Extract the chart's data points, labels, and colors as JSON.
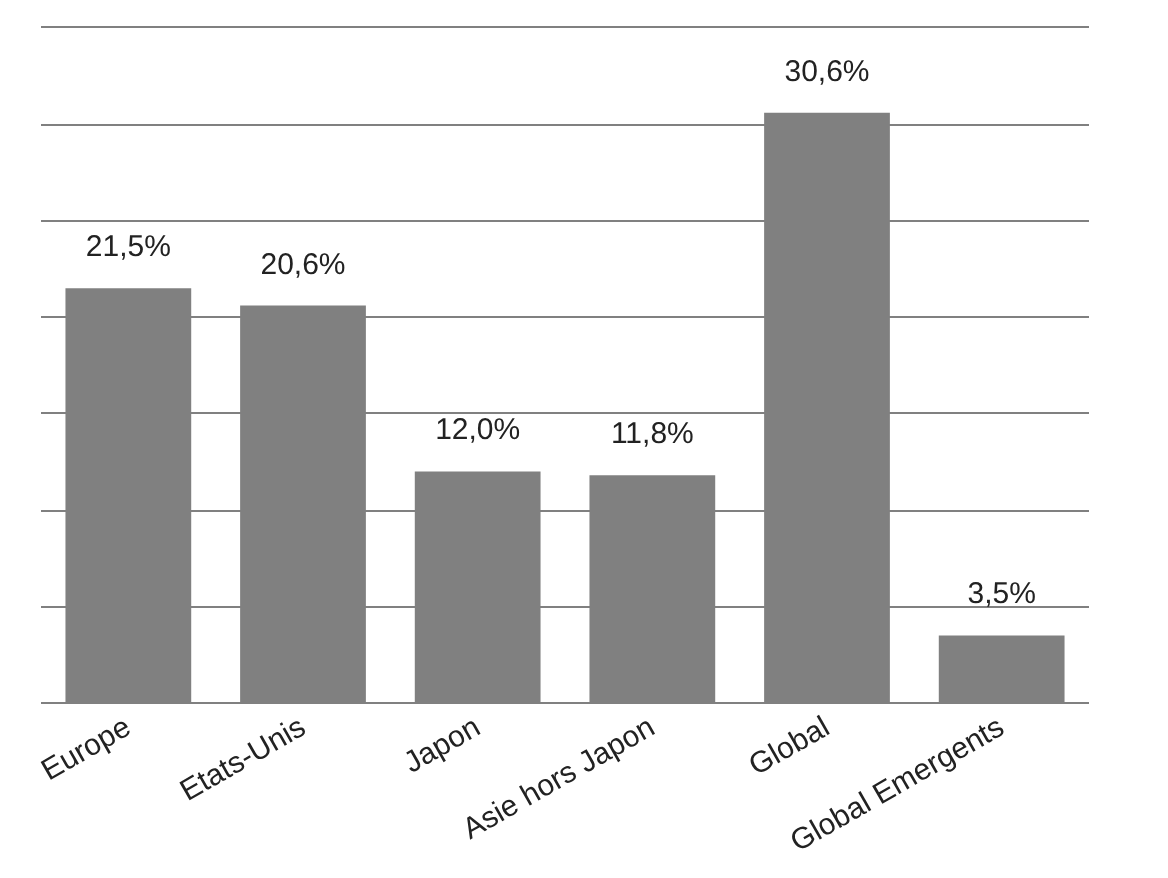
{
  "chart_data": {
    "type": "bar",
    "categories": [
      "Europe",
      "Etats-Unis",
      "Japon",
      "Asie hors Japon",
      "Global",
      "Global Emergents"
    ],
    "values": [
      21.5,
      20.6,
      12.0,
      11.8,
      30.6,
      3.5
    ],
    "value_labels": [
      "21,5%",
      "20,6%",
      "12,0%",
      "11,8%",
      "30,6%",
      "3,5%"
    ],
    "color": "#808080",
    "yticks": [
      {
        "value": 0,
        "label": null
      },
      {
        "value": 5,
        "label": null
      },
      {
        "value": 10,
        "label": null
      },
      {
        "value": 15,
        "label": null
      },
      {
        "value": 20,
        "label": null
      },
      {
        "value": 25,
        "label": null
      },
      {
        "value": 30,
        "label": null
      },
      {
        "value": 35,
        "label": null
      }
    ],
    "grid": "y",
    "tick_labels": "x"
  }
}
